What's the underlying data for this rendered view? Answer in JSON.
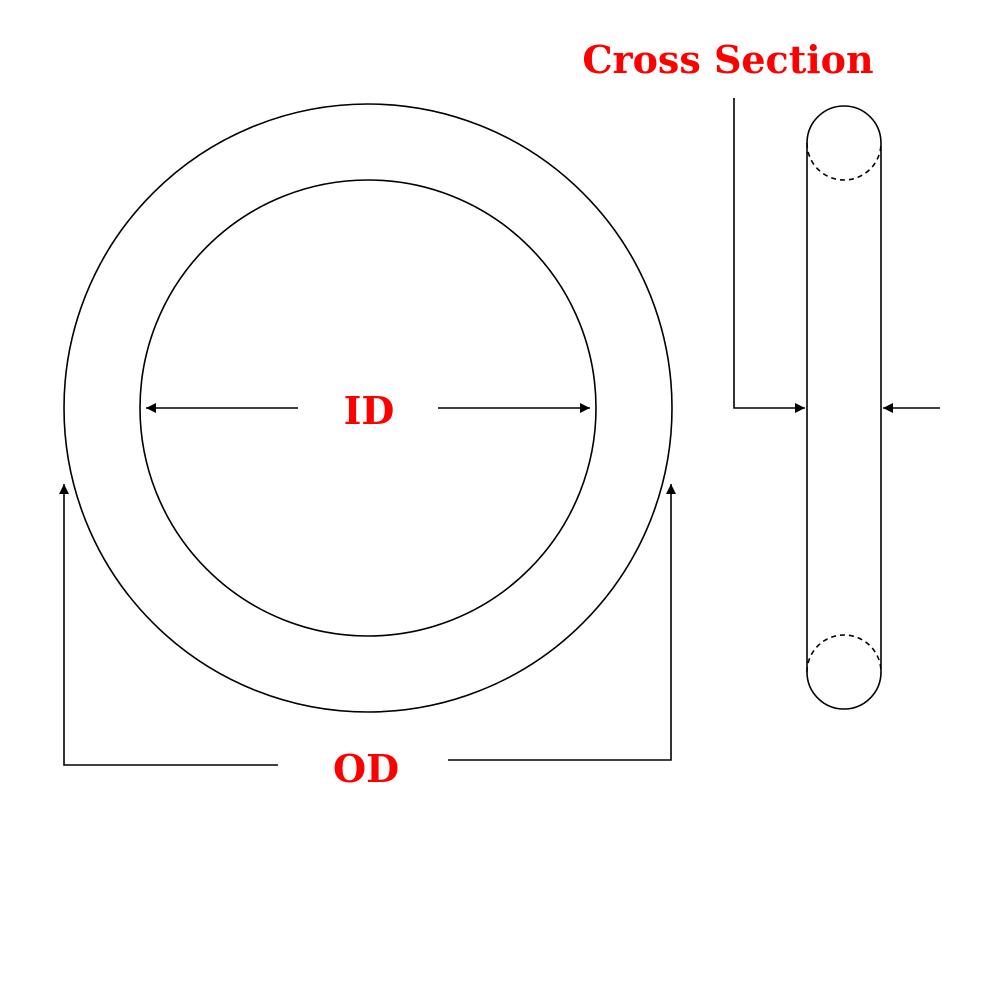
{
  "labels": {
    "cross_section": "Cross Section",
    "id": "ID",
    "od": "OD"
  },
  "colors": {
    "label": "#ff0000",
    "line": "#000000",
    "background": "#ffffff"
  }
}
